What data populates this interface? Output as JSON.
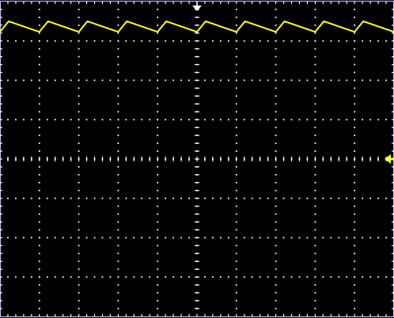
{
  "chart_data": {
    "type": "line",
    "title": "",
    "xlabel": "",
    "ylabel": "",
    "grid": true,
    "grid_style": "dotted",
    "divisions": {
      "x": 10,
      "y": 8
    },
    "xlim": [
      0,
      10
    ],
    "ylim": [
      -4,
      4
    ],
    "trigger_marker_x": 5,
    "ground_marker_y": 0,
    "series": [
      {
        "color": "#ffff33",
        "waveform": "sawtooth",
        "x": [
          0,
          0.22,
          1.0,
          1.22,
          2.0,
          2.22,
          3.0,
          3.22,
          4.0,
          4.22,
          5.0,
          5.22,
          6.0,
          6.22,
          7.0,
          7.22,
          8.0,
          8.22,
          9.0,
          9.22,
          10.0
        ],
        "y": [
          3.23,
          3.5,
          3.23,
          3.5,
          3.23,
          3.5,
          3.23,
          3.5,
          3.23,
          3.5,
          3.23,
          3.5,
          3.23,
          3.5,
          3.23,
          3.5,
          3.23,
          3.5,
          3.23,
          3.5,
          3.23
        ]
      }
    ]
  },
  "colors": {
    "background": "#000000",
    "grid": "#ffffff",
    "frame": "#c8c8ff",
    "trace": "#ffff33",
    "trigger_marker": "#ffffff",
    "ground_marker": "#ffff33"
  },
  "icons": {
    "trigger_marker": "down-triangle-marker",
    "ground_marker": "left-arrow-marker"
  }
}
